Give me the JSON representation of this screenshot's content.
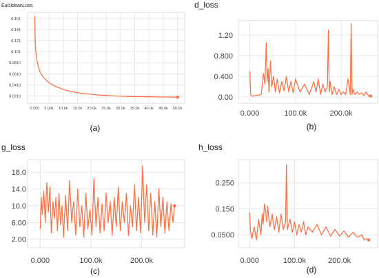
{
  "chart_data": [
    {
      "type": "line",
      "title": "EuclideanLoss",
      "caption": "(a)",
      "color": "#ff7043",
      "x_ticks": [
        "0.000",
        "5.00k",
        "10.0k",
        "15.0k",
        "20.0k",
        "25.0k",
        "30.0k",
        "35.0k",
        "40.0k",
        "45.0k",
        "50.0k"
      ],
      "y_ticks": [
        "0.161",
        "0.141",
        "0.121",
        "0.101",
        "0.0810",
        "0.0610",
        "0.0410",
        "0.0210"
      ],
      "xlim": [
        -2500,
        52500
      ],
      "ylim": [
        0.008,
        0.172
      ],
      "grid": true,
      "series": [
        {
          "x": [
            0,
            100,
            200,
            400,
            700,
            1000,
            1500,
            2000,
            3000,
            4000,
            5000,
            6000,
            7000,
            8000,
            9000,
            10000,
            12000,
            14000,
            16000,
            18000,
            20000,
            22000,
            25000,
            28000,
            31000,
            34000,
            37000,
            40000,
            43000,
            46000,
            49000,
            50000
          ],
          "y": [
            0.165,
            0.14,
            0.118,
            0.1,
            0.088,
            0.08,
            0.07,
            0.063,
            0.055,
            0.05,
            0.045,
            0.042,
            0.039,
            0.037,
            0.035,
            0.033,
            0.03,
            0.028,
            0.026,
            0.025,
            0.024,
            0.023,
            0.022,
            0.021,
            0.0205,
            0.02,
            0.0198,
            0.0195,
            0.0193,
            0.0192,
            0.019,
            0.019
          ]
        }
      ]
    },
    {
      "type": "line",
      "title": "d_loss",
      "caption": "(b)",
      "color": "#ff7043",
      "x_ticks": [
        "0.000",
        "100.0k",
        "200.0k"
      ],
      "y_ticks": [
        "1.20",
        "0.800",
        "0.400",
        "0.00"
      ],
      "xlim": [
        -25000,
        280000
      ],
      "ylim": [
        -0.12,
        1.48
      ],
      "grid": true,
      "series": [
        {
          "x": [
            0,
            2000,
            4000,
            8000,
            15000,
            25000,
            30000,
            33000,
            36000,
            38000,
            40000,
            42000,
            45000,
            48000,
            52000,
            56000,
            60000,
            65000,
            70000,
            75000,
            80000,
            85000,
            90000,
            95000,
            100000,
            110000,
            120000,
            130000,
            140000,
            145000,
            150000,
            155000,
            160000,
            165000,
            170000,
            172000,
            174000,
            176000,
            180000,
            185000,
            190000,
            195000,
            200000,
            205000,
            210000,
            215000,
            220000,
            222000,
            224000,
            226000,
            230000,
            235000,
            240000,
            245000,
            250000,
            255000,
            258000,
            262000,
            265000
          ],
          "y": [
            0.5,
            0.05,
            0.02,
            0.02,
            0.03,
            0.05,
            0.45,
            0.25,
            1.05,
            0.3,
            0.55,
            0.1,
            0.7,
            0.2,
            0.4,
            0.1,
            0.35,
            0.08,
            0.3,
            0.12,
            0.4,
            0.1,
            0.3,
            0.08,
            0.35,
            0.1,
            0.25,
            0.05,
            0.3,
            0.1,
            0.35,
            0.05,
            0.25,
            0.1,
            0.2,
            1.3,
            0.1,
            0.3,
            0.05,
            0.2,
            0.05,
            0.15,
            0.05,
            0.1,
            0.05,
            0.35,
            0.05,
            1.42,
            0.05,
            0.15,
            0.05,
            0.1,
            0.05,
            0.08,
            0.03,
            0.1,
            0.05,
            0.01,
            0.02
          ]
        }
      ]
    },
    {
      "type": "line",
      "title": "g_loss",
      "caption": "(c)",
      "color": "#ff7043",
      "x_ticks": [
        "0.000",
        "100.0k",
        "200.0k"
      ],
      "y_ticks": [
        "18.0",
        "14.0",
        "10.0",
        "6.00",
        "2.00"
      ],
      "xlim": [
        -25000,
        285000
      ],
      "ylim": [
        0,
        21
      ],
      "grid": true,
      "series": [
        {
          "x": [
            0,
            2000,
            4000,
            7000,
            10000,
            13000,
            16000,
            19000,
            22000,
            25000,
            28000,
            31000,
            34000,
            37000,
            40000,
            43000,
            46000,
            50000,
            54000,
            58000,
            62000,
            66000,
            70000,
            74000,
            78000,
            82000,
            86000,
            90000,
            94000,
            98000,
            102000,
            106000,
            110000,
            114000,
            118000,
            122000,
            126000,
            130000,
            134000,
            138000,
            142000,
            146000,
            150000,
            154000,
            158000,
            162000,
            166000,
            170000,
            174000,
            178000,
            182000,
            186000,
            190000,
            194000,
            198000,
            202000,
            206000,
            210000,
            214000,
            218000,
            222000,
            226000,
            230000,
            234000,
            238000,
            242000,
            246000,
            250000,
            254000,
            258000,
            262000,
            265000
          ],
          "y": [
            4.5,
            12,
            8,
            13.5,
            6,
            15.5,
            8.5,
            14.5,
            3.5,
            11,
            7,
            12,
            4,
            13,
            5.5,
            10,
            2.5,
            12.5,
            4,
            16,
            6,
            11,
            3,
            14,
            5,
            10,
            2.5,
            13,
            4.5,
            9,
            3,
            16.5,
            5,
            12,
            3.5,
            10.5,
            4,
            13,
            6,
            11,
            3,
            12,
            5,
            14.5,
            4,
            11,
            6,
            13,
            3,
            10,
            5,
            15,
            4,
            12,
            3.5,
            19.5,
            6,
            15,
            4,
            13,
            3,
            11,
            2.5,
            14,
            5,
            12,
            3.5,
            11,
            4,
            10.5,
            6,
            10
          ]
        }
      ]
    },
    {
      "type": "line",
      "title": "h_loss",
      "caption": "(d)",
      "color": "#ff7043",
      "x_ticks": [
        "0.000",
        "100.0k",
        "200.0k"
      ],
      "y_ticks": [
        "0.250",
        "0.150",
        "0.0500"
      ],
      "xlim": [
        -25000,
        285000
      ],
      "ylim": [
        0,
        0.34
      ],
      "grid": true,
      "series": [
        {
          "x": [
            0,
            2000,
            5000,
            10000,
            15000,
            20000,
            25000,
            28000,
            30000,
            33000,
            35000,
            38000,
            40000,
            45000,
            50000,
            55000,
            60000,
            65000,
            70000,
            75000,
            80000,
            82000,
            84000,
            90000,
            95000,
            100000,
            105000,
            110000,
            115000,
            120000,
            125000,
            130000,
            140000,
            150000,
            160000,
            170000,
            180000,
            190000,
            200000,
            210000,
            220000,
            230000,
            240000,
            250000,
            255000,
            260000,
            265000
          ],
          "y": [
            0.135,
            0.06,
            0.035,
            0.08,
            0.03,
            0.11,
            0.05,
            0.13,
            0.09,
            0.17,
            0.15,
            0.1,
            0.16,
            0.08,
            0.13,
            0.07,
            0.12,
            0.06,
            0.13,
            0.07,
            0.1,
            0.32,
            0.07,
            0.11,
            0.06,
            0.1,
            0.05,
            0.09,
            0.06,
            0.1,
            0.05,
            0.08,
            0.06,
            0.09,
            0.05,
            0.08,
            0.045,
            0.07,
            0.045,
            0.065,
            0.04,
            0.06,
            0.04,
            0.05,
            0.03,
            0.035,
            0.03
          ]
        }
      ]
    }
  ]
}
